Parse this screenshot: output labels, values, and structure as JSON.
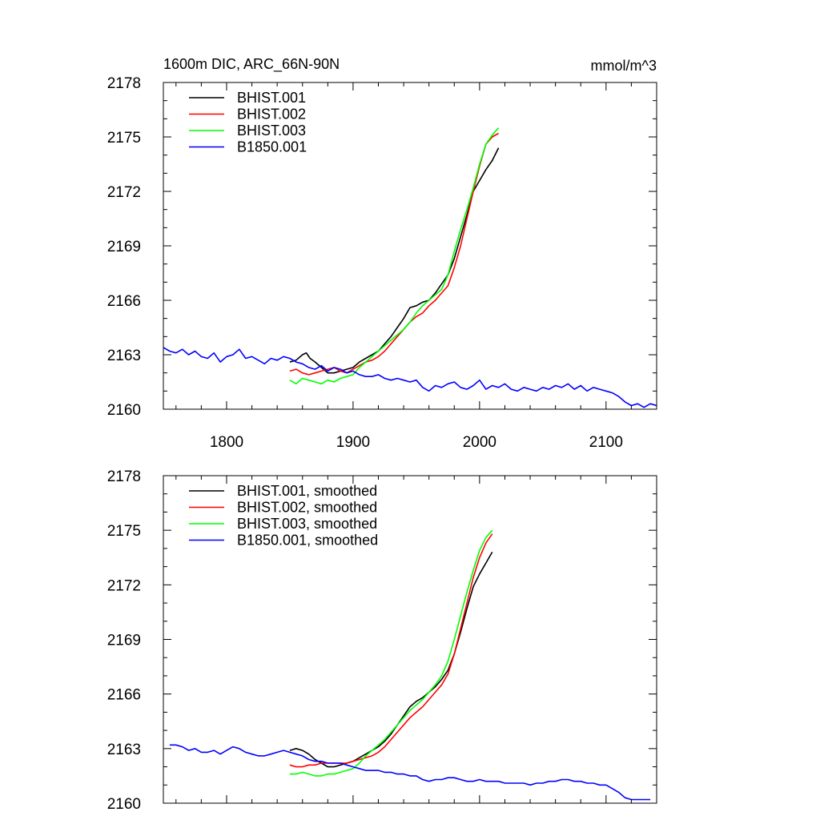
{
  "chart_data": [
    {
      "type": "line",
      "title": "1600m DIC, ARC_66N-90N",
      "units": "mmol/m^3",
      "xlabel": "",
      "ylabel": "",
      "xlim": [
        1750,
        2140
      ],
      "ylim": [
        2160,
        2178
      ],
      "xticks": [
        1800,
        1900,
        2000,
        2100
      ],
      "yticks": [
        2160,
        2163,
        2166,
        2169,
        2172,
        2175,
        2178
      ],
      "show_xtick_labels": true,
      "grid": false,
      "legend": "top-left",
      "series": [
        {
          "name": "BHIST.001",
          "color": "#000000",
          "x": [
            1850,
            1855,
            1860,
            1863,
            1866,
            1870,
            1875,
            1880,
            1885,
            1890,
            1895,
            1900,
            1905,
            1910,
            1915,
            1920,
            1925,
            1930,
            1935,
            1940,
            1945,
            1950,
            1955,
            1960,
            1965,
            1970,
            1975,
            1980,
            1985,
            1990,
            1995,
            2000,
            2005,
            2010,
            2015
          ],
          "y": [
            2162.6,
            2162.7,
            2163.0,
            2163.1,
            2162.8,
            2162.6,
            2162.3,
            2162.0,
            2162.0,
            2162.1,
            2162.2,
            2162.3,
            2162.6,
            2162.8,
            2163.0,
            2163.2,
            2163.6,
            2164.0,
            2164.5,
            2165.0,
            2165.6,
            2165.7,
            2165.9,
            2166.0,
            2166.4,
            2166.9,
            2167.4,
            2168.3,
            2169.5,
            2170.7,
            2172.0,
            2172.6,
            2173.2,
            2173.7,
            2174.4
          ]
        },
        {
          "name": "BHIST.002",
          "color": "#ff0000",
          "x": [
            1850,
            1855,
            1860,
            1865,
            1870,
            1875,
            1880,
            1885,
            1890,
            1895,
            1900,
            1905,
            1910,
            1915,
            1920,
            1925,
            1930,
            1935,
            1940,
            1945,
            1950,
            1955,
            1960,
            1965,
            1970,
            1975,
            1980,
            1985,
            1990,
            1995,
            2000,
            2005,
            2010,
            2015
          ],
          "y": [
            2162.1,
            2162.2,
            2162.0,
            2161.9,
            2162.0,
            2162.1,
            2162.2,
            2162.3,
            2162.1,
            2162.0,
            2162.2,
            2162.4,
            2162.6,
            2162.7,
            2162.9,
            2163.2,
            2163.6,
            2164.0,
            2164.4,
            2164.8,
            2165.1,
            2165.3,
            2165.7,
            2166.0,
            2166.4,
            2166.8,
            2167.8,
            2169.0,
            2170.5,
            2172.0,
            2173.4,
            2174.6,
            2175.0,
            2175.2
          ]
        },
        {
          "name": "BHIST.003",
          "color": "#00ff00",
          "x": [
            1850,
            1855,
            1860,
            1865,
            1870,
            1875,
            1880,
            1885,
            1890,
            1895,
            1900,
            1905,
            1910,
            1915,
            1920,
            1925,
            1930,
            1935,
            1940,
            1945,
            1950,
            1955,
            1960,
            1965,
            1970,
            1975,
            1980,
            1985,
            1990,
            1995,
            2000,
            2005,
            2010,
            2015
          ],
          "y": [
            2161.6,
            2161.4,
            2161.7,
            2161.6,
            2161.5,
            2161.4,
            2161.6,
            2161.5,
            2161.7,
            2161.8,
            2161.9,
            2162.3,
            2162.6,
            2162.9,
            2163.2,
            2163.5,
            2163.8,
            2164.1,
            2164.4,
            2164.8,
            2165.3,
            2165.7,
            2166.0,
            2166.3,
            2166.6,
            2167.4,
            2168.7,
            2169.9,
            2171.0,
            2172.2,
            2173.5,
            2174.6,
            2175.1,
            2175.5
          ]
        },
        {
          "name": "B1850.001",
          "color": "#0000ff",
          "x": [
            1750,
            1755,
            1760,
            1765,
            1770,
            1775,
            1780,
            1785,
            1790,
            1795,
            1800,
            1805,
            1810,
            1815,
            1820,
            1825,
            1830,
            1835,
            1840,
            1845,
            1850,
            1855,
            1860,
            1865,
            1870,
            1875,
            1880,
            1885,
            1890,
            1895,
            1900,
            1905,
            1910,
            1915,
            1920,
            1925,
            1930,
            1935,
            1940,
            1945,
            1950,
            1955,
            1960,
            1965,
            1970,
            1975,
            1980,
            1985,
            1990,
            1995,
            2000,
            2005,
            2010,
            2015,
            2020,
            2025,
            2030,
            2035,
            2040,
            2045,
            2050,
            2055,
            2060,
            2065,
            2070,
            2075,
            2080,
            2085,
            2090,
            2095,
            2100,
            2105,
            2110,
            2115,
            2120,
            2125,
            2130,
            2135,
            2140
          ],
          "y": [
            2163.4,
            2163.2,
            2163.1,
            2163.3,
            2163.0,
            2163.2,
            2162.9,
            2162.8,
            2163.1,
            2162.6,
            2162.9,
            2163.0,
            2163.3,
            2162.8,
            2162.9,
            2162.7,
            2162.5,
            2162.8,
            2162.7,
            2162.9,
            2162.8,
            2162.6,
            2162.5,
            2162.3,
            2162.2,
            2162.4,
            2162.1,
            2162.3,
            2162.2,
            2162.0,
            2162.1,
            2161.9,
            2161.8,
            2161.8,
            2161.9,
            2161.7,
            2161.6,
            2161.7,
            2161.6,
            2161.5,
            2161.6,
            2161.2,
            2161.0,
            2161.3,
            2161.2,
            2161.4,
            2161.5,
            2161.2,
            2161.1,
            2161.3,
            2161.6,
            2161.1,
            2161.3,
            2161.2,
            2161.4,
            2161.1,
            2161.0,
            2161.2,
            2161.1,
            2161.0,
            2161.2,
            2161.1,
            2161.3,
            2161.2,
            2161.4,
            2161.1,
            2161.3,
            2161.0,
            2161.2,
            2161.1,
            2161.0,
            2160.9,
            2160.7,
            2160.4,
            2160.2,
            2160.3,
            2160.1,
            2160.3,
            2160.2
          ]
        }
      ]
    },
    {
      "type": "line",
      "title": "",
      "units": "",
      "xlabel": "",
      "ylabel": "",
      "xlim": [
        1750,
        2140
      ],
      "ylim": [
        2160,
        2178
      ],
      "xticks": [
        1800,
        1900,
        2000,
        2100
      ],
      "yticks": [
        2160,
        2163,
        2166,
        2169,
        2172,
        2175,
        2178
      ],
      "show_xtick_labels": false,
      "grid": false,
      "legend": "top-left",
      "series": [
        {
          "name": "BHIST.001, smoothed",
          "color": "#000000",
          "x": [
            1850,
            1855,
            1860,
            1865,
            1870,
            1875,
            1880,
            1885,
            1890,
            1895,
            1900,
            1905,
            1910,
            1915,
            1920,
            1925,
            1930,
            1935,
            1940,
            1945,
            1950,
            1955,
            1960,
            1965,
            1970,
            1975,
            1980,
            1985,
            1990,
            1995,
            2000,
            2005,
            2010
          ],
          "y": [
            2162.9,
            2163.0,
            2162.9,
            2162.7,
            2162.4,
            2162.2,
            2162.0,
            2162.0,
            2162.1,
            2162.2,
            2162.3,
            2162.5,
            2162.7,
            2162.9,
            2163.1,
            2163.4,
            2163.8,
            2164.3,
            2164.8,
            2165.3,
            2165.6,
            2165.8,
            2166.1,
            2166.4,
            2166.8,
            2167.3,
            2168.2,
            2169.4,
            2170.7,
            2171.9,
            2172.6,
            2173.2,
            2173.8
          ]
        },
        {
          "name": "BHIST.002, smoothed",
          "color": "#ff0000",
          "x": [
            1850,
            1855,
            1860,
            1865,
            1870,
            1875,
            1880,
            1885,
            1890,
            1895,
            1900,
            1905,
            1910,
            1915,
            1920,
            1925,
            1930,
            1935,
            1940,
            1945,
            1950,
            1955,
            1960,
            1965,
            1970,
            1975,
            1980,
            1985,
            1990,
            1995,
            2000,
            2005,
            2010
          ],
          "y": [
            2162.1,
            2162.0,
            2162.0,
            2162.1,
            2162.1,
            2162.2,
            2162.2,
            2162.2,
            2162.2,
            2162.2,
            2162.3,
            2162.4,
            2162.5,
            2162.6,
            2162.8,
            2163.1,
            2163.5,
            2163.9,
            2164.3,
            2164.7,
            2165.0,
            2165.3,
            2165.7,
            2166.1,
            2166.5,
            2167.1,
            2168.2,
            2169.6,
            2171.0,
            2172.4,
            2173.5,
            2174.3,
            2174.8
          ]
        },
        {
          "name": "BHIST.003, smoothed",
          "color": "#00ff00",
          "x": [
            1850,
            1855,
            1860,
            1865,
            1870,
            1875,
            1880,
            1885,
            1890,
            1895,
            1900,
            1905,
            1910,
            1915,
            1920,
            1925,
            1930,
            1935,
            1940,
            1945,
            1950,
            1955,
            1960,
            1965,
            1970,
            1975,
            1980,
            1985,
            1990,
            1995,
            2000,
            2005,
            2010
          ],
          "y": [
            2161.6,
            2161.6,
            2161.7,
            2161.6,
            2161.5,
            2161.5,
            2161.6,
            2161.6,
            2161.7,
            2161.8,
            2161.9,
            2162.2,
            2162.6,
            2162.9,
            2163.2,
            2163.5,
            2163.9,
            2164.3,
            2164.7,
            2165.1,
            2165.4,
            2165.7,
            2166.1,
            2166.5,
            2167.0,
            2167.8,
            2169.0,
            2170.3,
            2171.6,
            2172.8,
            2173.9,
            2174.6,
            2175.0
          ]
        },
        {
          "name": "B1850.001, smoothed",
          "color": "#0000ff",
          "x": [
            1755,
            1760,
            1765,
            1770,
            1775,
            1780,
            1785,
            1790,
            1795,
            1800,
            1805,
            1810,
            1815,
            1820,
            1825,
            1830,
            1835,
            1840,
            1845,
            1850,
            1855,
            1860,
            1865,
            1870,
            1875,
            1880,
            1885,
            1890,
            1895,
            1900,
            1905,
            1910,
            1915,
            1920,
            1925,
            1930,
            1935,
            1940,
            1945,
            1950,
            1955,
            1960,
            1965,
            1970,
            1975,
            1980,
            1985,
            1990,
            1995,
            2000,
            2005,
            2010,
            2015,
            2020,
            2025,
            2030,
            2035,
            2040,
            2045,
            2050,
            2055,
            2060,
            2065,
            2070,
            2075,
            2080,
            2085,
            2090,
            2095,
            2100,
            2105,
            2110,
            2115,
            2120,
            2125,
            2130,
            2135
          ],
          "y": [
            2163.2,
            2163.2,
            2163.1,
            2162.9,
            2163.0,
            2162.8,
            2162.8,
            2162.9,
            2162.7,
            2162.9,
            2163.1,
            2163.0,
            2162.8,
            2162.7,
            2162.6,
            2162.6,
            2162.7,
            2162.8,
            2162.9,
            2162.8,
            2162.7,
            2162.6,
            2162.4,
            2162.3,
            2162.3,
            2162.2,
            2162.2,
            2162.2,
            2162.1,
            2162.0,
            2161.9,
            2161.8,
            2161.8,
            2161.8,
            2161.7,
            2161.7,
            2161.6,
            2161.6,
            2161.5,
            2161.5,
            2161.3,
            2161.2,
            2161.3,
            2161.3,
            2161.4,
            2161.4,
            2161.3,
            2161.2,
            2161.2,
            2161.3,
            2161.2,
            2161.2,
            2161.2,
            2161.1,
            2161.1,
            2161.1,
            2161.1,
            2161.0,
            2161.1,
            2161.1,
            2161.2,
            2161.2,
            2161.3,
            2161.3,
            2161.2,
            2161.2,
            2161.1,
            2161.1,
            2161.0,
            2161.0,
            2160.8,
            2160.6,
            2160.3,
            2160.2,
            2160.2,
            2160.2,
            2160.2
          ]
        }
      ]
    }
  ]
}
